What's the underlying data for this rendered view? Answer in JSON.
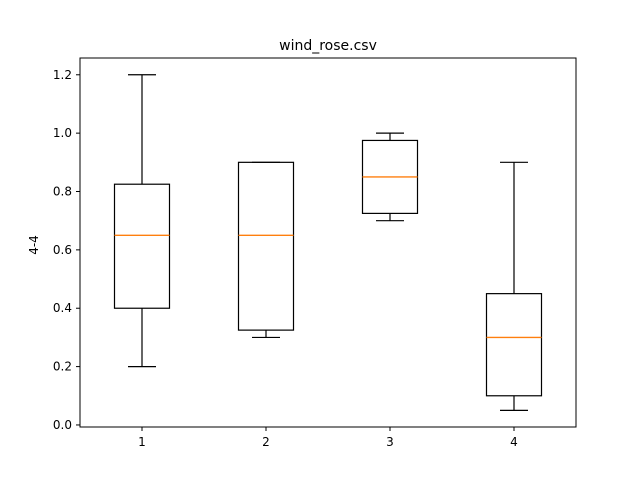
{
  "chart_data": {
    "type": "box",
    "title": "wind_rose.csv",
    "xlabel": "",
    "ylabel": "4-4",
    "ylim": [
      -0.007,
      1.2575
    ],
    "xlim": [
      0.5,
      4.5
    ],
    "yticks": [
      0.0,
      0.2,
      0.4,
      0.6,
      0.8,
      1.0,
      1.2
    ],
    "ytick_labels": [
      "0.0",
      "0.2",
      "0.4",
      "0.6",
      "0.8",
      "1.0",
      "1.2"
    ],
    "categories": [
      "1",
      "2",
      "3",
      "4"
    ],
    "boxes": [
      {
        "label": "1",
        "whisker_low": 0.2,
        "q1": 0.4,
        "median": 0.65,
        "q3": 0.825,
        "whisker_high": 1.2
      },
      {
        "label": "2",
        "whisker_low": 0.3,
        "q1": 0.325,
        "median": 0.65,
        "q3": 0.9,
        "whisker_high": 0.9
      },
      {
        "label": "3",
        "whisker_low": 0.7,
        "q1": 0.725,
        "median": 0.85,
        "q3": 0.975,
        "whisker_high": 1.0
      },
      {
        "label": "4",
        "whisker_low": 0.05,
        "q1": 0.1,
        "median": 0.3,
        "q3": 0.45,
        "whisker_high": 0.9
      }
    ],
    "grid": false,
    "colors": {
      "box": "#000000",
      "median": "#ff7f0e",
      "frame": "#000000"
    }
  }
}
